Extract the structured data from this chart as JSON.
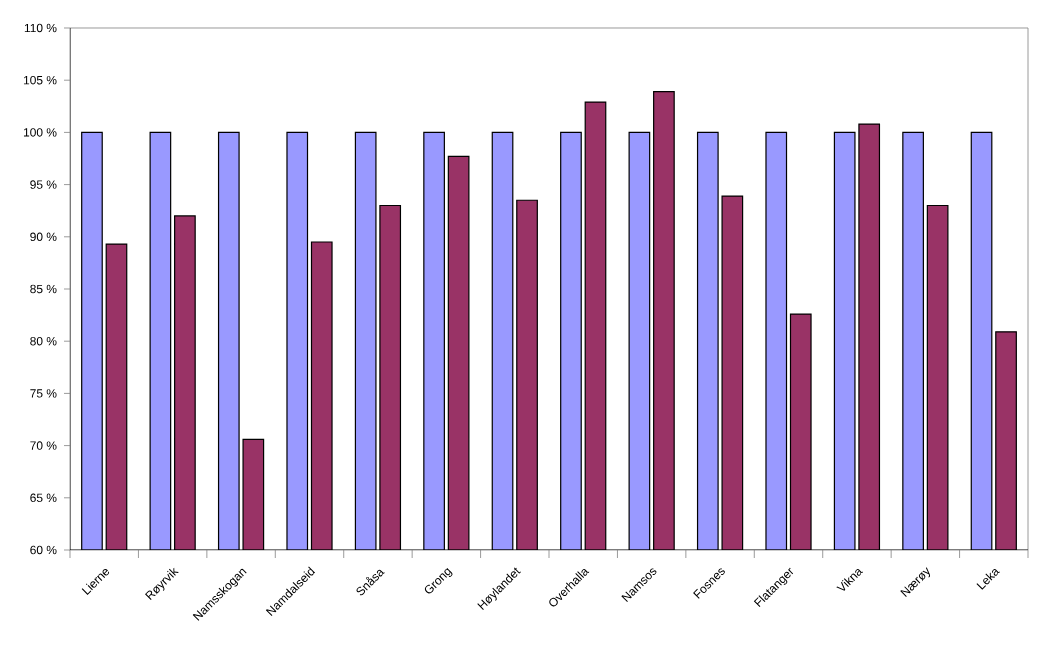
{
  "chart_data": {
    "type": "bar",
    "categories": [
      "Lierne",
      "Røyrvik",
      "Namsskogan",
      "Namdalseid",
      "Snåsa",
      "Grong",
      "Høylandet",
      "Overhalla",
      "Namsos",
      "Fosnes",
      "Flatanger",
      "Vikna",
      "Nærøy",
      "Leka"
    ],
    "series": [
      {
        "color": "#9999ff",
        "values": [
          100,
          100,
          100,
          100,
          100,
          100,
          100,
          100,
          100,
          100,
          100,
          100,
          100,
          100
        ]
      },
      {
        "color": "#993366",
        "values": [
          89.3,
          92.0,
          70.6,
          89.5,
          93.0,
          97.7,
          93.5,
          102.9,
          103.9,
          93.9,
          82.6,
          100.8,
          93.0,
          80.9
        ]
      }
    ],
    "ylim": [
      60,
      110
    ],
    "yticks": [
      {
        "value": 60,
        "label": "60 %"
      },
      {
        "value": 65,
        "label": "65 %"
      },
      {
        "value": 70,
        "label": "70 %"
      },
      {
        "value": 75,
        "label": "75 %"
      },
      {
        "value": 80,
        "label": "80 %"
      },
      {
        "value": 85,
        "label": "85 %"
      },
      {
        "value": 90,
        "label": "90 %"
      },
      {
        "value": 95,
        "label": "95 %"
      },
      {
        "value": 100,
        "label": "100 %"
      },
      {
        "value": 105,
        "label": "105 %"
      },
      {
        "value": 110,
        "label": "110 %"
      }
    ],
    "grid": false
  }
}
